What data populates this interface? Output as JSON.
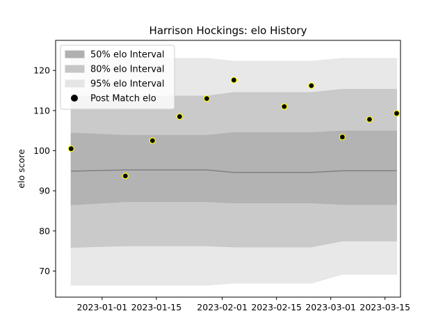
{
  "chart_data": {
    "type": "area",
    "title": "Harrison Hockings: elo History",
    "xlabel": "",
    "ylabel": "elo score",
    "x_ticks": [
      "2023-01-01",
      "2023-01-15",
      "2023-02-01",
      "2023-02-15",
      "2023-03-01",
      "2023-03-15"
    ],
    "y_ticks": [
      70,
      80,
      90,
      100,
      110,
      120
    ],
    "xlim": [
      "2022-12-20",
      "2023-03-19"
    ],
    "ylim": [
      63.5,
      127.5
    ],
    "grid": false,
    "legend_position": "top-left",
    "x": [
      "2022-12-24",
      "2023-01-07",
      "2023-01-14",
      "2023-01-21",
      "2023-01-28",
      "2023-02-04",
      "2023-02-17",
      "2023-02-24",
      "2023-03-04",
      "2023-03-11",
      "2023-03-18"
    ],
    "series": [
      {
        "name": "50% elo Interval",
        "kind": "band",
        "color": "#b0b0b0",
        "lower": [
          86.5,
          87.3,
          87.3,
          87.3,
          87.3,
          87.0,
          87.0,
          87.0,
          86.6,
          86.6,
          86.6
        ],
        "upper": [
          104.4,
          103.8,
          103.8,
          103.8,
          103.8,
          104.5,
          104.5,
          104.5,
          104.9,
          104.9,
          104.9
        ]
      },
      {
        "name": "80% elo Interval",
        "kind": "band",
        "color": "#c6c6c6",
        "lower": [
          75.9,
          76.3,
          76.3,
          76.3,
          76.3,
          76.0,
          76.0,
          76.0,
          77.5,
          77.5,
          77.5
        ],
        "upper": [
          113.6,
          113.6,
          113.6,
          113.6,
          113.6,
          114.5,
          114.5,
          114.5,
          115.3,
          115.3,
          115.3
        ]
      },
      {
        "name": "95% elo Interval",
        "kind": "band",
        "color": "#e5e5e5",
        "lower": [
          66.5,
          66.5,
          66.5,
          66.5,
          66.5,
          67.0,
          67.0,
          67.0,
          69.2,
          69.2,
          69.2
        ],
        "upper": [
          123.0,
          123.0,
          123.0,
          123.0,
          123.0,
          122.3,
          122.3,
          122.3,
          123.0,
          123.0,
          123.0
        ]
      },
      {
        "name": "",
        "kind": "line",
        "color": "#808080",
        "values": [
          94.9,
          95.2,
          95.2,
          95.2,
          95.2,
          94.6,
          94.6,
          94.6,
          95.0,
          95.0,
          95.0
        ]
      },
      {
        "name": "Post Match elo",
        "kind": "points",
        "color": "#000000",
        "edge_color": "#ffff00",
        "x": [
          "2022-12-24",
          "2023-01-07",
          "2023-01-14",
          "2023-01-21",
          "2023-01-28",
          "2023-02-04",
          "2023-02-17",
          "2023-02-24",
          "2023-03-04",
          "2023-03-11",
          "2023-03-18"
        ],
        "values": [
          100.5,
          93.7,
          102.5,
          108.5,
          113.0,
          117.6,
          111.0,
          116.2,
          103.4,
          107.8,
          109.3
        ]
      }
    ]
  }
}
